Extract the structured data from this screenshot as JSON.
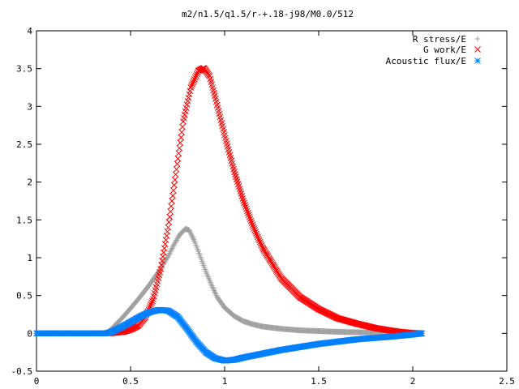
{
  "chart_data": {
    "type": "scatter",
    "title": "m2/n1.5/q1.5/r-+.18-j98/M0.0/512",
    "xlabel": "",
    "ylabel": "",
    "xlim": [
      0,
      2.5
    ],
    "ylim": [
      -0.5,
      4
    ],
    "x_ticks": [
      "0",
      "0.5",
      "1",
      "1.5",
      "2",
      "2.5"
    ],
    "y_ticks": [
      "-0.5",
      "0",
      "0.5",
      "1",
      "1.5",
      "2",
      "2.5",
      "3",
      "3.5",
      "4"
    ],
    "legend_position": "top-right",
    "grid": false,
    "series": [
      {
        "name": "R stress/E",
        "color": "#a0a0a0",
        "marker": "plus",
        "points": [
          [
            0.0,
            0.0
          ],
          [
            0.1,
            0.0
          ],
          [
            0.2,
            0.0
          ],
          [
            0.3,
            0.0
          ],
          [
            0.37,
            0.0
          ],
          [
            0.4,
            0.06
          ],
          [
            0.45,
            0.19
          ],
          [
            0.5,
            0.33
          ],
          [
            0.55,
            0.48
          ],
          [
            0.6,
            0.64
          ],
          [
            0.65,
            0.82
          ],
          [
            0.7,
            1.02
          ],
          [
            0.73,
            1.17
          ],
          [
            0.76,
            1.3
          ],
          [
            0.79,
            1.38
          ],
          [
            0.81,
            1.37
          ],
          [
            0.84,
            1.22
          ],
          [
            0.87,
            1.02
          ],
          [
            0.9,
            0.82
          ],
          [
            0.93,
            0.64
          ],
          [
            0.96,
            0.48
          ],
          [
            1.0,
            0.34
          ],
          [
            1.05,
            0.23
          ],
          [
            1.1,
            0.16
          ],
          [
            1.15,
            0.12
          ],
          [
            1.2,
            0.09
          ],
          [
            1.3,
            0.06
          ],
          [
            1.4,
            0.04
          ],
          [
            1.5,
            0.03
          ],
          [
            1.6,
            0.02
          ],
          [
            1.7,
            0.015
          ],
          [
            1.8,
            0.01
          ],
          [
            1.9,
            0.005
          ],
          [
            2.0,
            0.002
          ],
          [
            2.05,
            0.0
          ]
        ]
      },
      {
        "name": "G work/E",
        "color": "#ff0000",
        "marker": "cross",
        "points": [
          [
            0.38,
            0.0
          ],
          [
            0.42,
            0.01
          ],
          [
            0.46,
            0.02
          ],
          [
            0.5,
            0.05
          ],
          [
            0.54,
            0.1
          ],
          [
            0.58,
            0.22
          ],
          [
            0.62,
            0.45
          ],
          [
            0.66,
            0.85
          ],
          [
            0.7,
            1.4
          ],
          [
            0.74,
            2.1
          ],
          [
            0.78,
            2.8
          ],
          [
            0.82,
            3.25
          ],
          [
            0.86,
            3.47
          ],
          [
            0.89,
            3.51
          ],
          [
            0.92,
            3.4
          ],
          [
            0.95,
            3.12
          ],
          [
            1.0,
            2.62
          ],
          [
            1.05,
            2.15
          ],
          [
            1.1,
            1.75
          ],
          [
            1.15,
            1.42
          ],
          [
            1.2,
            1.14
          ],
          [
            1.3,
            0.73
          ],
          [
            1.4,
            0.48
          ],
          [
            1.5,
            0.32
          ],
          [
            1.6,
            0.2
          ],
          [
            1.7,
            0.13
          ],
          [
            1.8,
            0.07
          ],
          [
            1.9,
            0.03
          ],
          [
            1.95,
            0.015
          ],
          [
            2.0,
            0.005
          ],
          [
            2.05,
            0.0
          ]
        ]
      },
      {
        "name": "Acoustic flux/E",
        "color": "#0080ff",
        "marker": "star",
        "points": [
          [
            0.0,
            0.0
          ],
          [
            0.1,
            0.0
          ],
          [
            0.2,
            0.0
          ],
          [
            0.3,
            0.0
          ],
          [
            0.37,
            0.0
          ],
          [
            0.4,
            0.02
          ],
          [
            0.45,
            0.08
          ],
          [
            0.5,
            0.15
          ],
          [
            0.55,
            0.22
          ],
          [
            0.6,
            0.28
          ],
          [
            0.65,
            0.31
          ],
          [
            0.7,
            0.3
          ],
          [
            0.75,
            0.22
          ],
          [
            0.8,
            0.06
          ],
          [
            0.85,
            -0.11
          ],
          [
            0.9,
            -0.25
          ],
          [
            0.95,
            -0.33
          ],
          [
            1.0,
            -0.36
          ],
          [
            1.05,
            -0.35
          ],
          [
            1.1,
            -0.32
          ],
          [
            1.2,
            -0.27
          ],
          [
            1.3,
            -0.22
          ],
          [
            1.4,
            -0.18
          ],
          [
            1.5,
            -0.14
          ],
          [
            1.6,
            -0.11
          ],
          [
            1.7,
            -0.08
          ],
          [
            1.8,
            -0.06
          ],
          [
            1.9,
            -0.04
          ],
          [
            2.0,
            -0.015
          ],
          [
            2.05,
            0.0
          ]
        ]
      }
    ]
  }
}
